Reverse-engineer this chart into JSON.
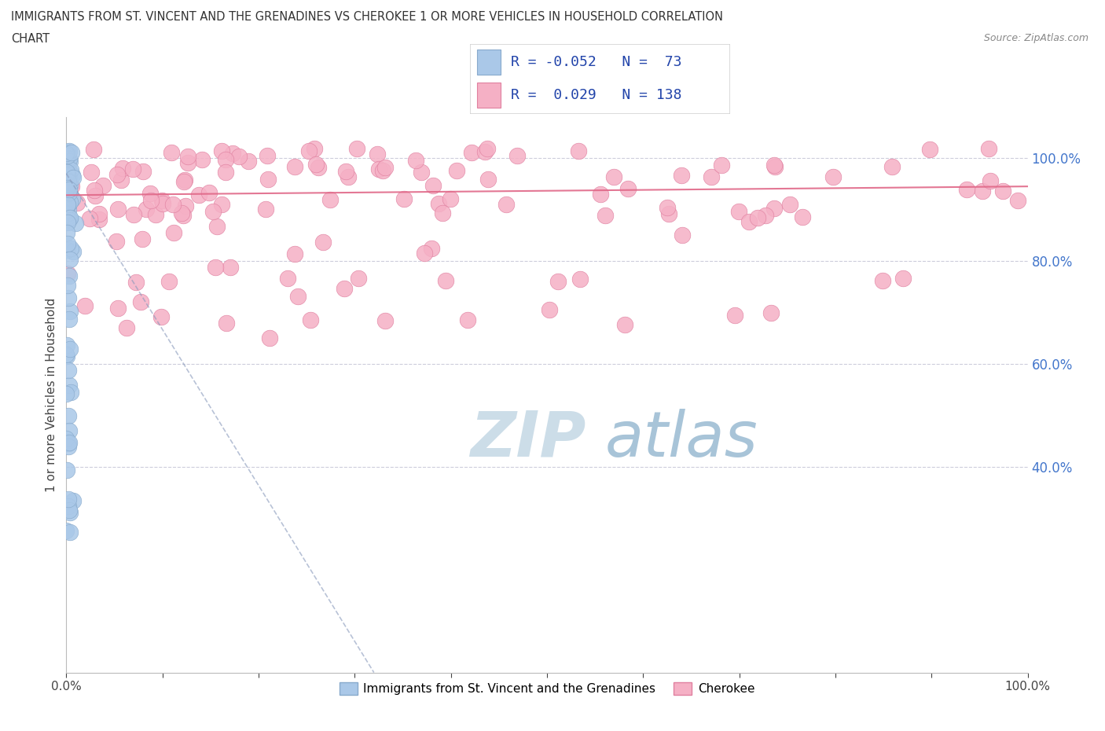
{
  "title_line1": "IMMIGRANTS FROM ST. VINCENT AND THE GRENADINES VS CHEROKEE 1 OR MORE VEHICLES IN HOUSEHOLD CORRELATION",
  "title_line2": "CHART",
  "source_text": "Source: ZipAtlas.com",
  "ylabel": "1 or more Vehicles in Household",
  "xlim": [
    0,
    1.0
  ],
  "ylim": [
    0,
    1.08
  ],
  "y_ticks_right": [
    0.4,
    0.6,
    0.8,
    1.0
  ],
  "y_tick_labels_right": [
    "40.0%",
    "60.0%",
    "80.0%",
    "100.0%"
  ],
  "blue_R": -0.052,
  "blue_N": 73,
  "pink_R": 0.029,
  "pink_N": 138,
  "blue_color": "#aac8e8",
  "pink_color": "#f5b0c5",
  "blue_edge_color": "#88aacc",
  "pink_edge_color": "#e080a0",
  "blue_trend_color": "#8899bb",
  "pink_trend_color": "#e06888",
  "dashed_line_color": "#b8b8cc",
  "watermark_zip_color": "#ccdde8",
  "watermark_atlas_color": "#ccdde8",
  "legend_label_blue": "Immigrants from St. Vincent and the Grenadines",
  "legend_label_pink": "Cherokee",
  "background_color": "#ffffff"
}
